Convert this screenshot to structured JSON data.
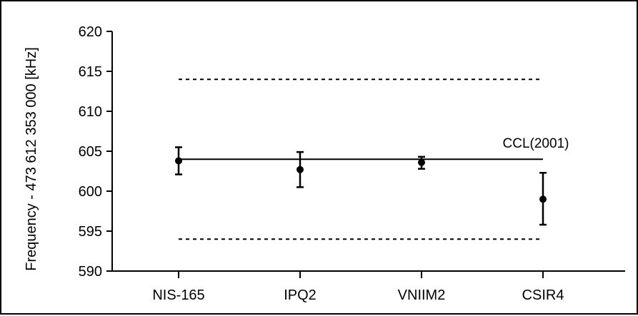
{
  "chart_data": {
    "type": "scatter",
    "title": "",
    "xlabel": "",
    "ylabel": "Frequency - 473 612 353 000 [kHz]",
    "ylim": [
      589,
      621
    ],
    "yticks": [
      590,
      595,
      600,
      605,
      610,
      615,
      620
    ],
    "categories": [
      "NIS-165",
      "IPQ2",
      "VNIIM2",
      "CSIR4"
    ],
    "series": [
      {
        "values": [
          603.8,
          602.7,
          603.6,
          599.0
        ],
        "err_low": [
          602.1,
          600.5,
          602.8,
          595.8
        ],
        "err_high": [
          605.5,
          604.9,
          604.3,
          602.3
        ]
      }
    ],
    "reference_line": {
      "label": "CCL(2001)",
      "value": 604
    },
    "limit_lines": [
      614,
      594
    ],
    "grid": false,
    "legend": "none"
  }
}
